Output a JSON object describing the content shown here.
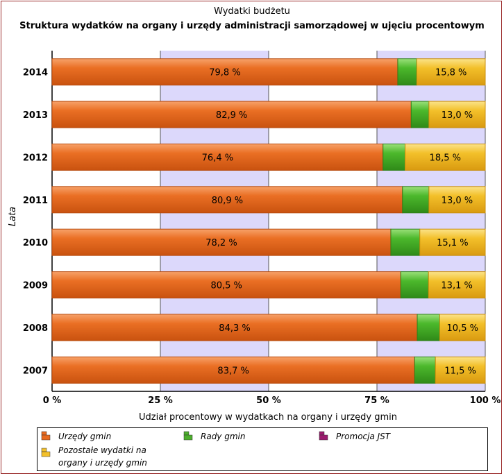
{
  "chart_data": {
    "type": "bar",
    "orientation": "horizontal",
    "stacked": true,
    "title": "Wydatki budżetu",
    "subtitle": "Struktura  wydatków na organy i urzędy administracji samorządowej w ujęciu procentowym",
    "xlabel": "Udział procentowy w wydatkach na organy i urzędy gmin",
    "ylabel": "Lata",
    "xlim": [
      0,
      100
    ],
    "x_ticks": [
      "0 %",
      "25 %",
      "50 %",
      "75 %",
      "100 %"
    ],
    "categories": [
      "2014",
      "2013",
      "2012",
      "2011",
      "2010",
      "2009",
      "2008",
      "2007"
    ],
    "series": [
      {
        "name": "Urzędy gmin",
        "values": [
          79.8,
          82.9,
          76.4,
          80.9,
          78.2,
          80.5,
          84.3,
          83.7
        ],
        "labels": [
          "79,8 %",
          "82,9 %",
          "76,4 %",
          "80,9 %",
          "78,2 %",
          "80,5 %",
          "84,3 %",
          "83,7 %"
        ],
        "color": "#e8691e"
      },
      {
        "name": "Rady gmin",
        "values": [
          4.4,
          4.1,
          5.1,
          6.1,
          6.7,
          6.4,
          5.2,
          4.8
        ],
        "color": "#4cae2c"
      },
      {
        "name": "Promocja JST",
        "values": [
          0,
          0,
          0,
          0,
          0,
          0,
          0,
          0
        ],
        "color": "#9b1b6e"
      },
      {
        "name": "Pozostałe wydatki na organy i urzędy gmin",
        "values": [
          15.8,
          13.0,
          18.5,
          13.0,
          15.1,
          13.1,
          10.5,
          11.5
        ],
        "labels": [
          "15,8 %",
          "13,0 %",
          "18,5 %",
          "13,0 %",
          "15,1 %",
          "13,1 %",
          "10,5 %",
          "11,5 %"
        ],
        "color": "#f3c02a"
      }
    ],
    "grid": true,
    "legend_position": "bottom"
  },
  "legend": {
    "items": [
      {
        "label": "Urzędy gmin",
        "color": "#e8691e",
        "icon": "stack-icon"
      },
      {
        "label": "Rady gmin",
        "color": "#4cae2c",
        "icon": "stack-icon"
      },
      {
        "label": "Promocja JST",
        "color": "#9b1b6e",
        "icon": "stack-icon"
      },
      {
        "label_line1": "Pozostałe wydatki na",
        "label_line2": "organy i urzędy gmin",
        "color": "#f3c02a",
        "icon": "stack-icon"
      }
    ]
  },
  "colors": {
    "band_light": "#ffffff",
    "band_shade": "#dcd8fb",
    "frame": "#9b2b2b"
  }
}
